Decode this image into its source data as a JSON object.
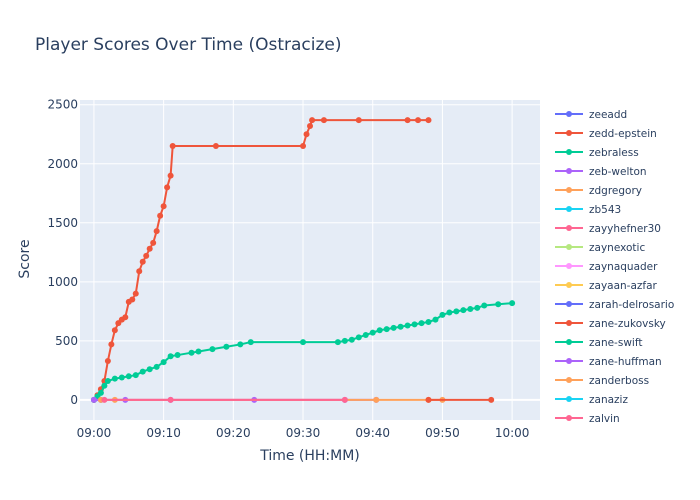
{
  "chart_data": {
    "type": "line",
    "title": "Player Scores Over Time (Ostracize)",
    "xlabel": "Time (HH:MM)",
    "ylabel": "Score",
    "xlim": [
      "08:58",
      "10:04"
    ],
    "ylim": [
      -170,
      2540
    ],
    "x_ticks": [
      "09:00",
      "09:10",
      "09:20",
      "09:30",
      "09:40",
      "09:50",
      "10:00"
    ],
    "y_ticks": [
      0,
      500,
      1000,
      1500,
      2000,
      2500
    ],
    "grid": true,
    "legend_position": "right",
    "series": [
      {
        "name": "zeeadd",
        "color": "#636efa",
        "x": [
          "09:00",
          "09:01"
        ],
        "y": [
          0,
          0
        ]
      },
      {
        "name": "zedd-epstein",
        "color": "#EF553B",
        "x": [
          "09:00",
          "09:00.5",
          "09:01",
          "09:01.5",
          "09:02",
          "09:02.5",
          "09:03",
          "09:03.5",
          "09:04",
          "09:04.5",
          "09:05",
          "09:05.5",
          "09:06",
          "09:06.5",
          "09:07",
          "09:07.5",
          "09:08",
          "09:08.5",
          "09:09",
          "09:09.5",
          "09:10",
          "09:10.5",
          "09:11",
          "09:11.3",
          "09:17.5",
          "09:30",
          "09:30.5",
          "09:31",
          "09:31.3",
          "09:33",
          "09:38",
          "09:45",
          "09:46.5",
          "09:48"
        ],
        "y": [
          0,
          40,
          90,
          160,
          330,
          470,
          590,
          650,
          680,
          700,
          830,
          850,
          900,
          1090,
          1170,
          1220,
          1280,
          1330,
          1430,
          1560,
          1640,
          1800,
          1900,
          2150,
          2150,
          2150,
          2250,
          2320,
          2370,
          2370,
          2370,
          2370,
          2370,
          2370
        ]
      },
      {
        "name": "zebraless",
        "color": "#00cc96",
        "x": [
          "09:00",
          "09:00.5",
          "09:01",
          "09:01.5",
          "09:02",
          "09:03",
          "09:04",
          "09:05",
          "09:06",
          "09:07",
          "09:08",
          "09:09",
          "09:10",
          "09:11",
          "09:12",
          "09:14",
          "09:15",
          "09:17",
          "09:19",
          "09:21",
          "09:22.5",
          "09:30",
          "09:35",
          "09:36",
          "09:37",
          "09:38",
          "09:39",
          "09:40",
          "09:41",
          "09:42",
          "09:43",
          "09:44",
          "09:45",
          "09:46",
          "09:47",
          "09:48",
          "09:49",
          "09:50",
          "09:51",
          "09:52",
          "09:53",
          "09:54",
          "09:55",
          "09:56",
          "09:58",
          "10:00"
        ],
        "y": [
          0,
          30,
          60,
          120,
          160,
          180,
          190,
          200,
          210,
          240,
          260,
          280,
          320,
          370,
          380,
          400,
          410,
          430,
          450,
          470,
          490,
          490,
          490,
          500,
          510,
          530,
          550,
          570,
          590,
          600,
          610,
          620,
          630,
          640,
          650,
          660,
          680,
          720,
          740,
          750,
          760,
          770,
          780,
          800,
          810,
          820
        ]
      },
      {
        "name": "zeb-welton",
        "color": "#ab63fa",
        "x": [
          "09:00",
          "09:04.5",
          "09:11",
          "09:23",
          "09:36",
          "09:40.5"
        ],
        "y": [
          0,
          0,
          0,
          0,
          0,
          0
        ]
      },
      {
        "name": "zdgregory",
        "color": "#FFA15A",
        "x": [
          "09:01",
          "09:03",
          "09:40.5",
          "09:48",
          "09:50"
        ],
        "y": [
          0,
          0,
          0,
          0,
          0
        ]
      },
      {
        "name": "zb543",
        "color": "#19d3f3",
        "x": [],
        "y": []
      },
      {
        "name": "zayyhefner30",
        "color": "#FF6692",
        "x": [
          "09:01.5",
          "09:11",
          "09:36"
        ],
        "y": [
          0,
          0,
          0
        ]
      },
      {
        "name": "zaynexotic",
        "color": "#B6E880",
        "x": [],
        "y": []
      },
      {
        "name": "zaynaquader",
        "color": "#FF97FF",
        "x": [],
        "y": []
      },
      {
        "name": "zayaan-azfar",
        "color": "#FECB52",
        "x": [],
        "y": []
      },
      {
        "name": "zarah-delrosario",
        "color": "#636efa",
        "x": [],
        "y": []
      },
      {
        "name": "zane-zukovsky",
        "color": "#EF553B",
        "x": [
          "09:48",
          "09:57"
        ],
        "y": [
          0,
          0
        ]
      },
      {
        "name": "zane-swift",
        "color": "#00cc96",
        "x": [],
        "y": []
      },
      {
        "name": "zane-huffman",
        "color": "#ab63fa",
        "x": [],
        "y": []
      },
      {
        "name": "zanderboss",
        "color": "#FFA15A",
        "x": [],
        "y": []
      },
      {
        "name": "zanaziz",
        "color": "#19d3f3",
        "x": [],
        "y": []
      },
      {
        "name": "zalvin",
        "color": "#FF6692",
        "x": [],
        "y": []
      }
    ]
  }
}
